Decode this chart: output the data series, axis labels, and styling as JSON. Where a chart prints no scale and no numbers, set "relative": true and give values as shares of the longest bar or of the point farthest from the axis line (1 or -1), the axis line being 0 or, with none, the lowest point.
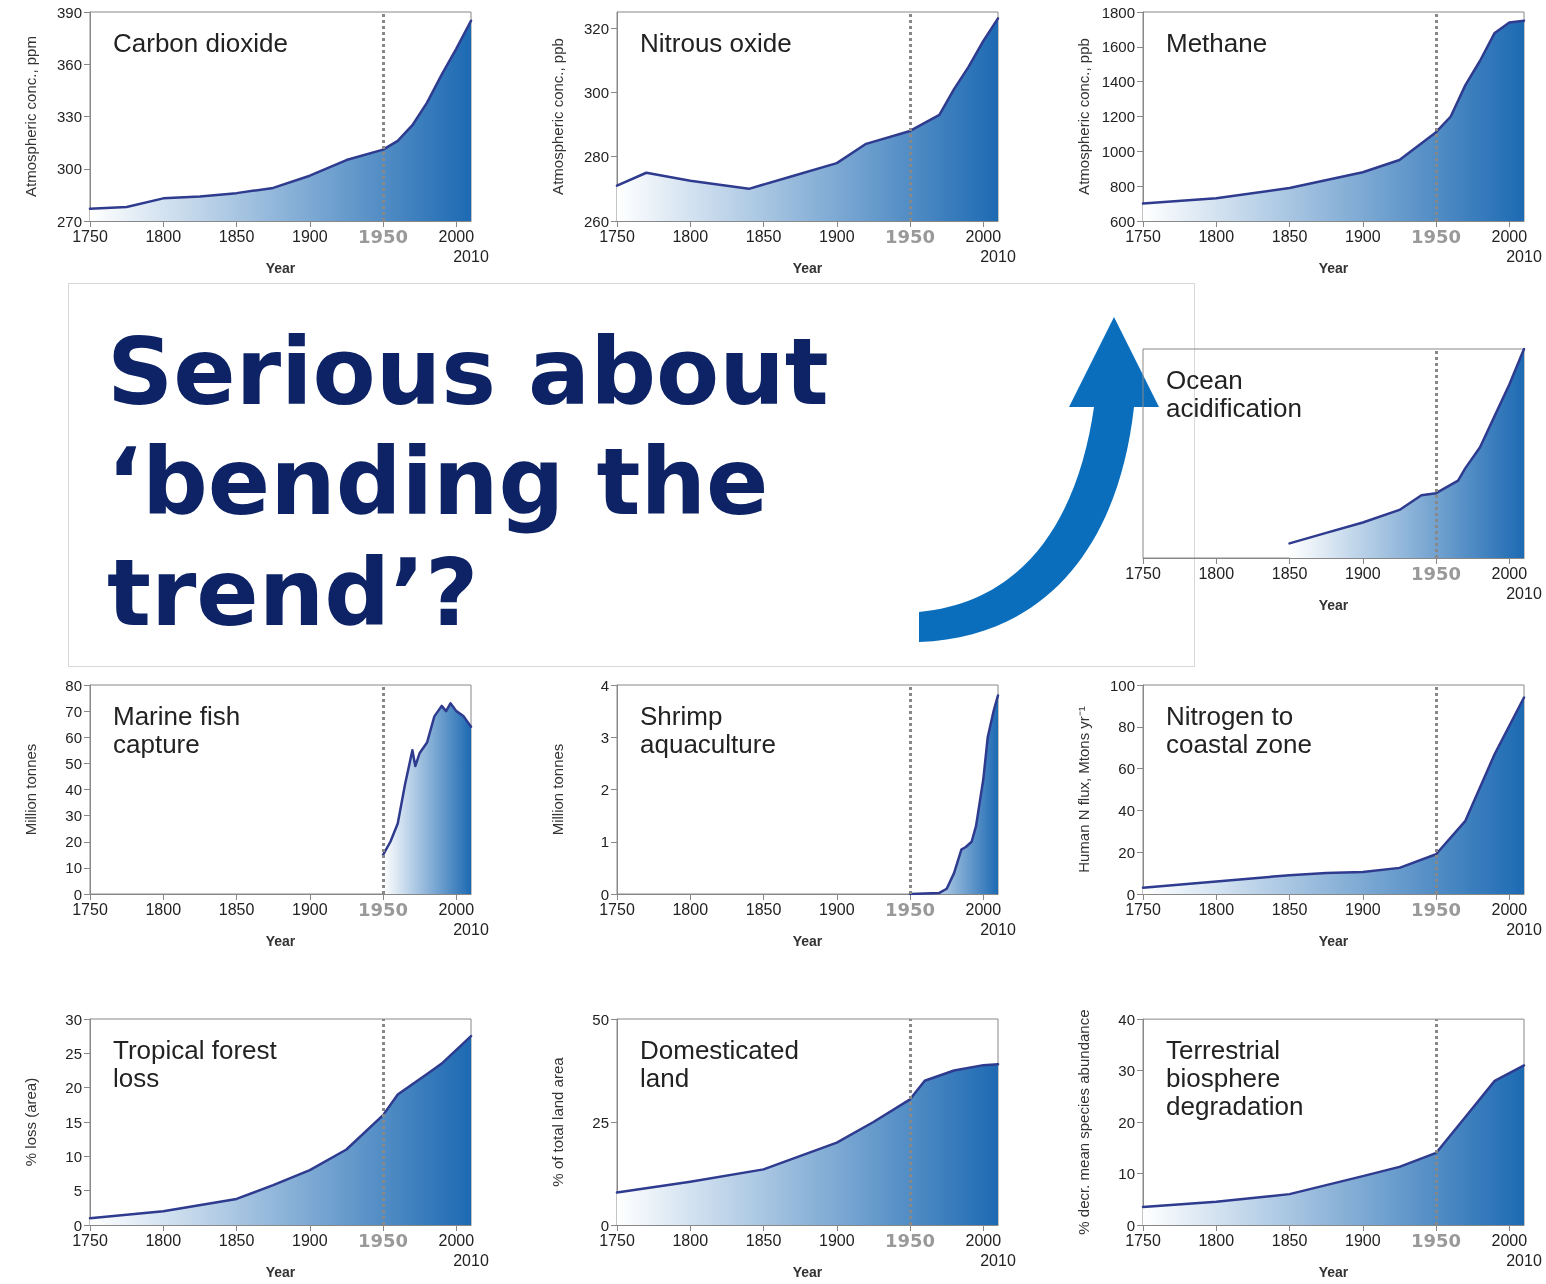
{
  "chart_data": [
    {
      "type": "area",
      "title": "Carbon dioxide",
      "xlabel": "Year",
      "annotations": [
        "2010"
      ],
      "ylabel": "Atmospheric conc., ppm",
      "xlim": [
        1750,
        2010
      ],
      "xticks": [
        1750,
        1800,
        1850,
        1900,
        1950,
        2000
      ],
      "ylim": [
        270,
        390
      ],
      "yticks": [
        270,
        300,
        330,
        360,
        390
      ],
      "ref_lines": [
        {
          "axis": "x",
          "value": 1950,
          "color": "#888888",
          "line_style": "dotted"
        }
      ],
      "series": [
        {
          "color": "#2e3b8e",
          "x": [
            1750,
            1775,
            1800,
            1825,
            1850,
            1875,
            1900,
            1925,
            1950,
            1960,
            1970,
            1980,
            1990,
            2000,
            2010
          ],
          "values": [
            277,
            278,
            283,
            284,
            286,
            289,
            296,
            305,
            311,
            316,
            325,
            338,
            354,
            369,
            385
          ]
        }
      ]
    },
    {
      "type": "area",
      "title": "Nitrous oxide",
      "xlabel": "Year",
      "annotations": [
        "2010"
      ],
      "ylabel": "Atmospheric conc., ppb",
      "xlim": [
        1750,
        2010
      ],
      "xticks": [
        1750,
        1800,
        1850,
        1900,
        1950,
        2000
      ],
      "ylim": [
        260,
        325
      ],
      "yticks": [
        260,
        280,
        300,
        320
      ],
      "ref_lines": [
        {
          "axis": "x",
          "value": 1950,
          "color": "#888888",
          "line_style": "dotted"
        }
      ],
      "series": [
        {
          "color": "#2e3b8e",
          "x": [
            1750,
            1770,
            1800,
            1840,
            1870,
            1900,
            1920,
            1950,
            1970,
            1980,
            1990,
            2000,
            2010
          ],
          "values": [
            271,
            275,
            272.5,
            270,
            274,
            278,
            284,
            288,
            293,
            301,
            308,
            316,
            323
          ]
        }
      ]
    },
    {
      "type": "area",
      "title": "Methane",
      "xlabel": "Year",
      "annotations": [
        "2010"
      ],
      "ylabel": "Atmospheric conc., ppb",
      "xlim": [
        1750,
        2010
      ],
      "xticks": [
        1750,
        1800,
        1850,
        1900,
        1950,
        2000
      ],
      "ylim": [
        600,
        1800
      ],
      "yticks": [
        600,
        800,
        1000,
        1200,
        1400,
        1600,
        1800
      ],
      "ref_lines": [
        {
          "axis": "x",
          "value": 1950,
          "color": "#888888",
          "line_style": "dotted"
        }
      ],
      "series": [
        {
          "color": "#2e3b8e",
          "x": [
            1750,
            1800,
            1850,
            1900,
            1925,
            1950,
            1960,
            1970,
            1980,
            1990,
            2000,
            2010
          ],
          "values": [
            700,
            730,
            790,
            880,
            950,
            1110,
            1200,
            1380,
            1520,
            1680,
            1740,
            1750
          ]
        }
      ]
    },
    {
      "type": "other",
      "title": "Serious about ‘bending the trend’?"
    },
    {
      "type": "area",
      "title": "Ocean acidification",
      "xlabel": "Year",
      "annotations": [
        "2010"
      ],
      "relative": true,
      "xlim": [
        1750,
        2010
      ],
      "xticks": [
        1750,
        1800,
        1850,
        1900,
        1950,
        2000
      ],
      "ref_lines": [
        {
          "axis": "x",
          "value": 1950,
          "color": "#888888",
          "line_style": "dotted"
        }
      ],
      "series": [
        {
          "color": "#2e3b8e",
          "x": [
            1850,
            1875,
            1900,
            1925,
            1940,
            1950,
            1965,
            1970,
            1980,
            1990,
            2000,
            2010
          ],
          "values": [
            0.07,
            0.12,
            0.17,
            0.23,
            0.3,
            0.31,
            0.37,
            0.43,
            0.53,
            0.68,
            0.83,
            1
          ]
        }
      ]
    },
    {
      "type": "area",
      "title": "Marine fish capture",
      "xlabel": "Year",
      "annotations": [
        "2010"
      ],
      "ylabel": "Million tonnes",
      "xlim": [
        1750,
        2010
      ],
      "xticks": [
        1750,
        1800,
        1850,
        1900,
        1950,
        2000
      ],
      "ylim": [
        0,
        80
      ],
      "yticks": [
        0,
        10,
        20,
        30,
        40,
        50,
        60,
        70,
        80
      ],
      "ref_lines": [
        {
          "axis": "x",
          "value": 1950,
          "color": "#888888",
          "line_style": "dotted"
        }
      ],
      "series": [
        {
          "color": "#2e3b8e",
          "x": [
            1950,
            1955,
            1960,
            1965,
            1970,
            1972,
            1975,
            1980,
            1985,
            1990,
            1993,
            1996,
            2000,
            2005,
            2010
          ],
          "values": [
            15,
            20,
            27,
            42,
            55,
            49,
            54,
            58,
            68,
            72,
            70,
            73,
            70,
            68,
            64
          ]
        }
      ]
    },
    {
      "type": "area",
      "title": "Shrimp aquaculture",
      "xlabel": "Year",
      "annotations": [
        "2010"
      ],
      "ylabel": "Million tonnes",
      "xlim": [
        1750,
        2010
      ],
      "xticks": [
        1750,
        1800,
        1850,
        1900,
        1950,
        2000
      ],
      "ylim": [
        0,
        4
      ],
      "yticks": [
        0,
        1,
        2,
        3,
        4
      ],
      "ref_lines": [
        {
          "axis": "x",
          "value": 1950,
          "color": "#888888",
          "line_style": "dotted"
        }
      ],
      "series": [
        {
          "color": "#2e3b8e",
          "x": [
            1950,
            1970,
            1975,
            1980,
            1985,
            1988,
            1992,
            1995,
            2000,
            2003,
            2007,
            2010
          ],
          "values": [
            0,
            0.02,
            0.1,
            0.4,
            0.85,
            0.9,
            1,
            1.3,
            2.2,
            3,
            3.5,
            3.8
          ]
        }
      ]
    },
    {
      "type": "area",
      "title": "Nitrogen to coastal zone",
      "xlabel": "Year",
      "annotations": [
        "2010"
      ],
      "ylabel": "Human N flux, Mtons yr⁻¹",
      "xlim": [
        1750,
        2010
      ],
      "xticks": [
        1750,
        1800,
        1850,
        1900,
        1950,
        2000
      ],
      "ylim": [
        0,
        100
      ],
      "yticks": [
        0,
        20,
        40,
        60,
        80,
        100
      ],
      "ref_lines": [
        {
          "axis": "x",
          "value": 1950,
          "color": "#888888",
          "line_style": "dotted"
        }
      ],
      "series": [
        {
          "color": "#2e3b8e",
          "x": [
            1750,
            1800,
            1850,
            1875,
            1900,
            1925,
            1950,
            1970,
            1990,
            2010
          ],
          "values": [
            3,
            6,
            9,
            10,
            10.5,
            12.5,
            19,
            35,
            67,
            94
          ]
        }
      ]
    },
    {
      "type": "area",
      "title": "Tropical forest loss",
      "xlabel": "Year",
      "annotations": [
        "2010"
      ],
      "ylabel": "% loss (area)",
      "xlim": [
        1750,
        2010
      ],
      "xticks": [
        1750,
        1800,
        1850,
        1900,
        1950,
        2000
      ],
      "ylim": [
        0,
        30
      ],
      "yticks": [
        0,
        5,
        10,
        15,
        20,
        25,
        30
      ],
      "ref_lines": [
        {
          "axis": "x",
          "value": 1950,
          "color": "#888888",
          "line_style": "dotted"
        }
      ],
      "series": [
        {
          "color": "#2e3b8e",
          "x": [
            1750,
            1800,
            1850,
            1875,
            1900,
            1925,
            1950,
            1960,
            1970,
            1980,
            1990,
            2000,
            2010
          ],
          "values": [
            1,
            2,
            3.8,
            5.8,
            8,
            11,
            16,
            19,
            20.5,
            22,
            23.5,
            25.5,
            27.5
          ]
        }
      ]
    },
    {
      "type": "area",
      "title": "Domesticated land",
      "xlabel": "Year",
      "annotations": [
        "2010"
      ],
      "ylabel": "% of total land area",
      "xlim": [
        1750,
        2010
      ],
      "xticks": [
        1750,
        1800,
        1850,
        1900,
        1950,
        2000
      ],
      "ylim": [
        0,
        50
      ],
      "yticks": [
        0,
        25,
        50
      ],
      "ref_lines": [
        {
          "axis": "x",
          "value": 1950,
          "color": "#888888",
          "line_style": "dotted"
        }
      ],
      "series": [
        {
          "color": "#2e3b8e",
          "x": [
            1750,
            1800,
            1850,
            1900,
            1925,
            1950,
            1960,
            1980,
            2000,
            2010
          ],
          "values": [
            7.9,
            10.5,
            13.5,
            20,
            25,
            30.5,
            35,
            37.5,
            38.8,
            39
          ]
        }
      ]
    },
    {
      "type": "area",
      "title": "Terrestrial biosphere degradation",
      "xlabel": "Year",
      "annotations": [
        "2010"
      ],
      "ylabel": "% decr. mean species abundance",
      "xlim": [
        1750,
        2010
      ],
      "xticks": [
        1750,
        1800,
        1850,
        1900,
        1950,
        2000
      ],
      "ylim": [
        0,
        40
      ],
      "yticks": [
        0,
        10,
        20,
        30,
        40
      ],
      "ref_lines": [
        {
          "axis": "x",
          "value": 1950,
          "color": "#888888",
          "line_style": "dotted"
        }
      ],
      "series": [
        {
          "color": "#2e3b8e",
          "x": [
            1750,
            1800,
            1850,
            1900,
            1925,
            1950,
            1970,
            1990,
            2010
          ],
          "values": [
            3.5,
            4.5,
            6,
            9.5,
            11.3,
            14,
            21,
            28,
            31
          ]
        }
      ]
    }
  ]
}
